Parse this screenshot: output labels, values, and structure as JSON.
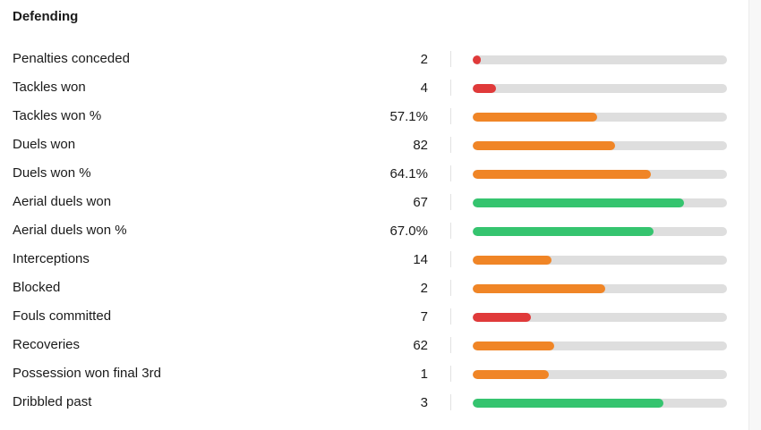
{
  "section": {
    "title": "Defending"
  },
  "colors": {
    "red": "#e03a3a",
    "orange": "#f08526",
    "green": "#35c46f",
    "track": "#dedede"
  },
  "stats": [
    {
      "label": "Penalties conceded",
      "value": "2",
      "fill": 0.03,
      "color": "red"
    },
    {
      "label": "Tackles won",
      "value": "4",
      "fill": 0.09,
      "color": "red"
    },
    {
      "label": "Tackles won %",
      "value": "57.1%",
      "fill": 0.49,
      "color": "orange"
    },
    {
      "label": "Duels won",
      "value": "82",
      "fill": 0.56,
      "color": "orange"
    },
    {
      "label": "Duels won %",
      "value": "64.1%",
      "fill": 0.7,
      "color": "orange"
    },
    {
      "label": "Aerial duels won",
      "value": "67",
      "fill": 0.83,
      "color": "green"
    },
    {
      "label": "Aerial duels won %",
      "value": "67.0%",
      "fill": 0.71,
      "color": "green"
    },
    {
      "label": "Interceptions",
      "value": "14",
      "fill": 0.31,
      "color": "orange"
    },
    {
      "label": "Blocked",
      "value": "2",
      "fill": 0.52,
      "color": "orange"
    },
    {
      "label": "Fouls committed",
      "value": "7",
      "fill": 0.23,
      "color": "red"
    },
    {
      "label": "Recoveries",
      "value": "62",
      "fill": 0.32,
      "color": "orange"
    },
    {
      "label": "Possession won final 3rd",
      "value": "1",
      "fill": 0.3,
      "color": "orange"
    },
    {
      "label": "Dribbled past",
      "value": "3",
      "fill": 0.75,
      "color": "green"
    }
  ]
}
